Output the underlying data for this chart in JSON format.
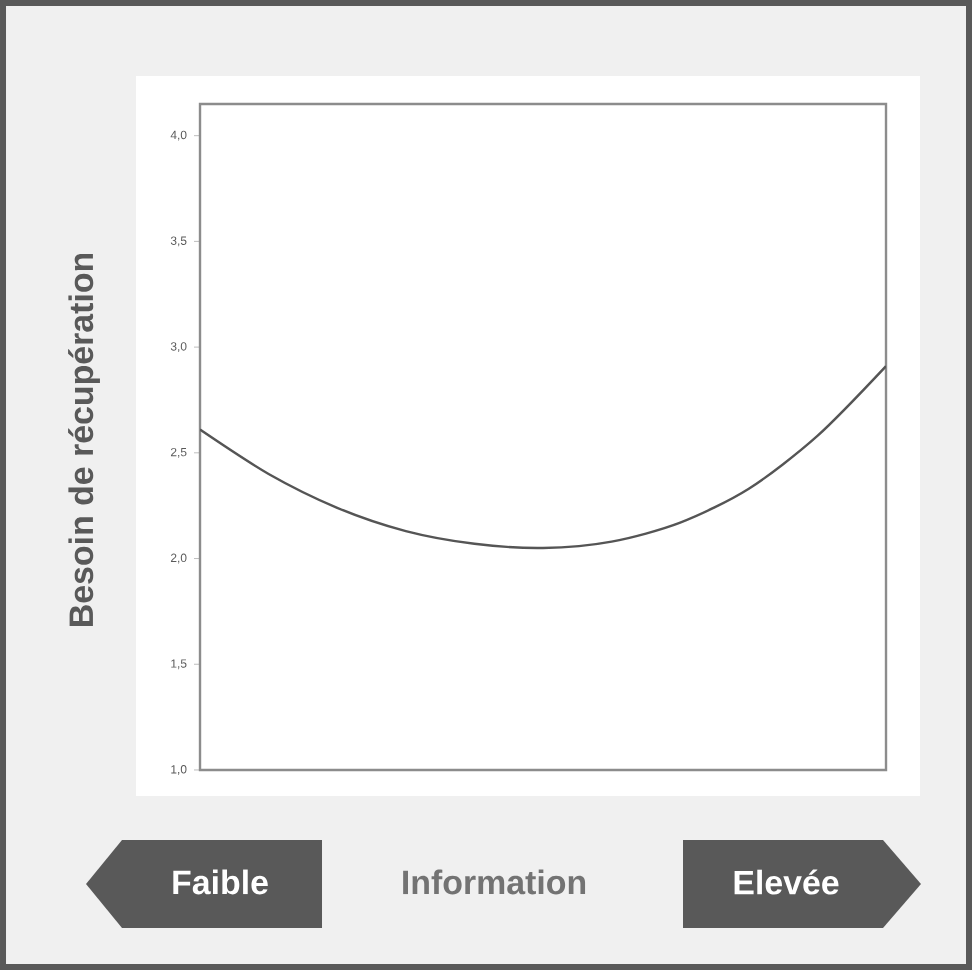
{
  "chart_data": {
    "type": "line",
    "ylabel": "Besoin de récupération",
    "xlabel": "Information",
    "categories": [
      null,
      null,
      null,
      null,
      null,
      null,
      null,
      null,
      null,
      null,
      null
    ],
    "series": [
      {
        "color": "#555555",
        "values": [
          2.61,
          2.4,
          2.24,
          2.13,
          2.07,
          2.05,
          2.08,
          2.17,
          2.33,
          2.58,
          2.91
        ]
      }
    ],
    "ylim": [
      1.0,
      4.15
    ],
    "yticks": [
      {
        "value": 1.0,
        "label": "1,0"
      },
      {
        "value": 1.5,
        "label": "1,5"
      },
      {
        "value": 2.0,
        "label": "2,0"
      },
      {
        "value": 2.5,
        "label": "2,5"
      },
      {
        "value": 3.0,
        "label": "3,0"
      },
      {
        "value": 3.5,
        "label": "3,5"
      },
      {
        "value": 4.0,
        "label": "4,0"
      }
    ],
    "tick_labels": "y",
    "grid": false,
    "marker": "none",
    "line_style": "solid",
    "annotations": [
      "Faible",
      "Elevée"
    ]
  }
}
